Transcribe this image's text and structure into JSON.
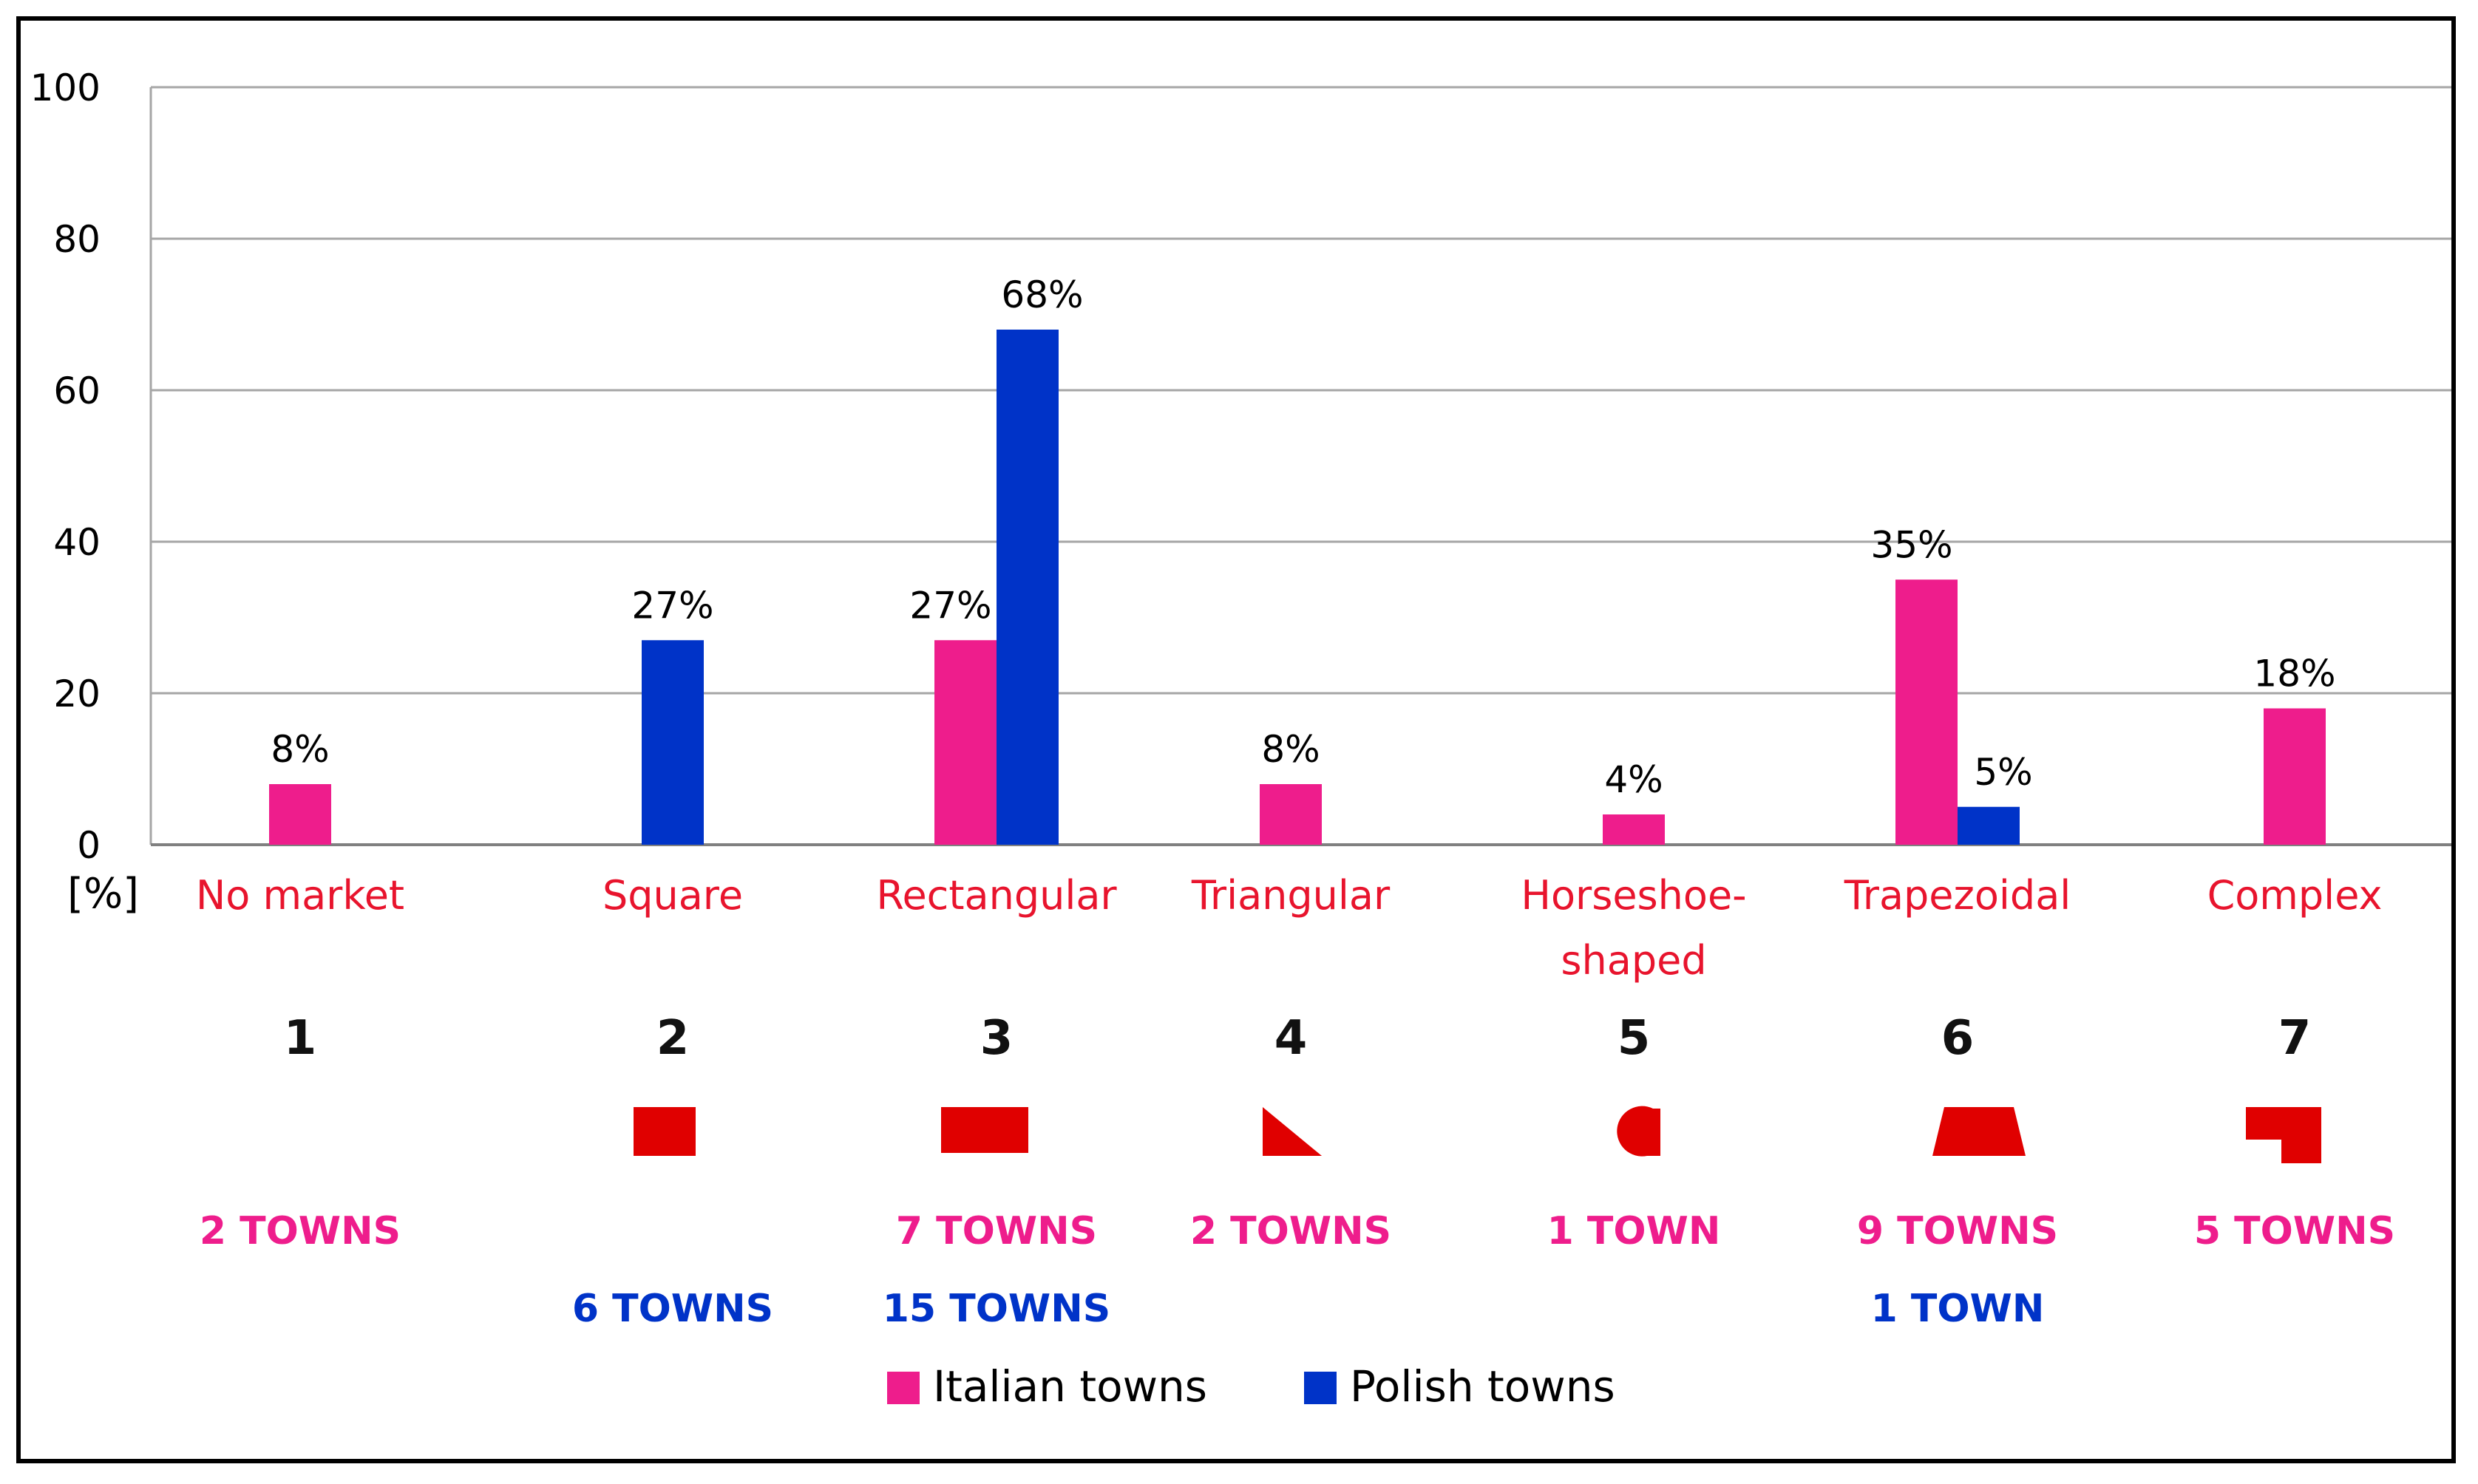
{
  "chart_data": {
    "type": "bar",
    "title": "",
    "xlabel": "",
    "ylabel": "[%]",
    "ylim": [
      0,
      100
    ],
    "yticks": [
      0,
      20,
      40,
      60,
      80,
      100
    ],
    "grid": true,
    "categories": [
      "No market",
      "Square",
      "Rectangular",
      "Triangular",
      "Horseshoe-shaped",
      "Trapezoidal",
      "Complex"
    ],
    "category_numbers": [
      "1",
      "2",
      "3",
      "4",
      "5",
      "6",
      "7"
    ],
    "shape_icons": [
      "none",
      "square-icon",
      "rectangle-icon",
      "triangle-icon",
      "horseshoe-icon",
      "trapezoid-icon",
      "complex-shape-icon"
    ],
    "series": [
      {
        "name": "Italian towns",
        "color": "#ee1d8c",
        "values": [
          8,
          0,
          27,
          8,
          4,
          35,
          18
        ],
        "value_labels": [
          "8%",
          "",
          "27%",
          "8%",
          "4%",
          "35%",
          "18%"
        ],
        "town_counts": [
          "2 TOWNS",
          "",
          "7 TOWNS",
          "2 TOWNS",
          "1 TOWN",
          "9 TOWNS",
          "5 TOWNS"
        ]
      },
      {
        "name": "Polish towns",
        "color": "#0033c8",
        "values": [
          0,
          27,
          68,
          0,
          0,
          5,
          0
        ],
        "value_labels": [
          "",
          "27%",
          "68%",
          "",
          "",
          "5%",
          ""
        ],
        "town_counts": [
          "",
          "6 TOWNS",
          "15 TOWNS",
          "",
          "",
          "1 TOWN",
          ""
        ]
      }
    ],
    "legend_position": "bottom-center"
  },
  "colors": {
    "category_label": "#e8142d",
    "shape_fill": "#e00000",
    "number": "#111111",
    "axis_text": "#000000",
    "grid": "#a6a6a6"
  }
}
